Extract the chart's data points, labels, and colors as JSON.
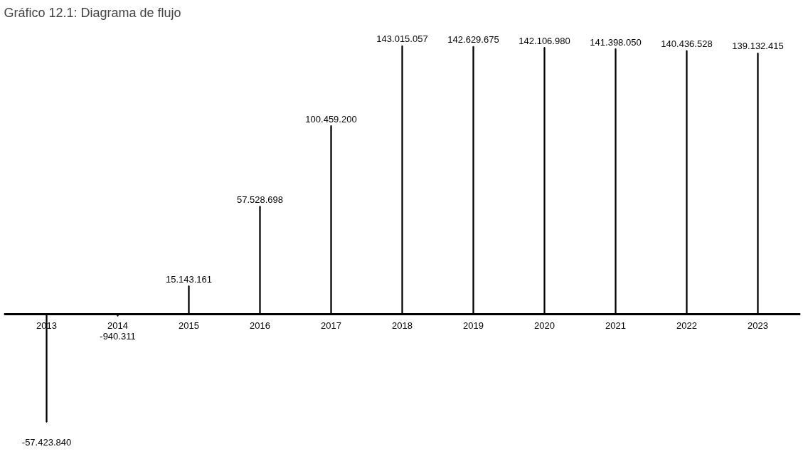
{
  "chart_data": {
    "type": "bar",
    "title": "Gráfico 12.1: Diagrama de flujo",
    "categories": [
      "2013",
      "2014",
      "2015",
      "2016",
      "2017",
      "2018",
      "2019",
      "2020",
      "2021",
      "2022",
      "2023"
    ],
    "values": [
      -57423840,
      -940311,
      15143161,
      57528698,
      100459200,
      143015057,
      142629675,
      142106980,
      141398050,
      140436528,
      139132415
    ],
    "value_labels": [
      "-57.423.840",
      "-940.311",
      "15.143.161",
      "57.528.698",
      "100.459.200",
      "143.015.057",
      "142.629.675",
      "142.106.980",
      "141.398.050",
      "140.436.528",
      "139.132.415"
    ],
    "color": "#000000",
    "tick_labels": "x",
    "grid": false
  }
}
